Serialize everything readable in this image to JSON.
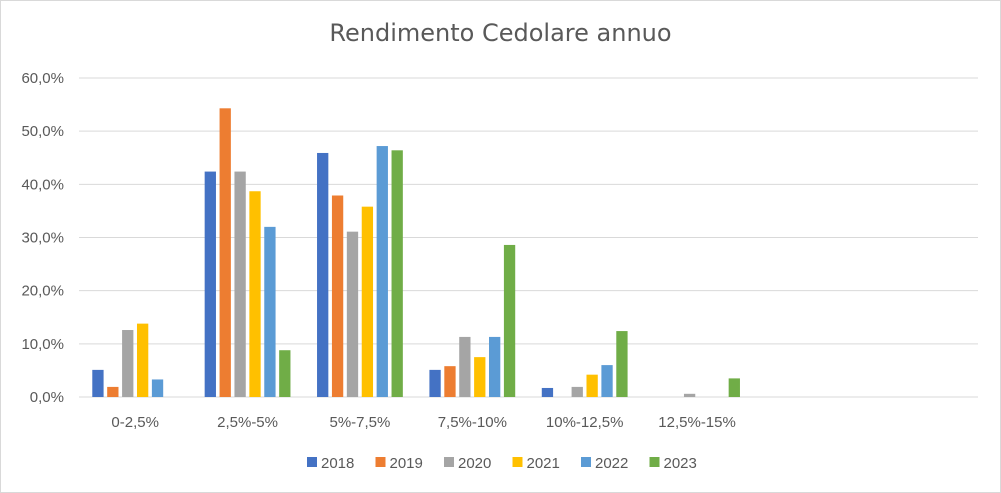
{
  "chart_data": {
    "type": "bar",
    "title": "Rendimento Cedolare annuo",
    "xlabel": "",
    "ylabel": "",
    "categories": [
      "0-2,5%",
      "2,5%-5%",
      "5%-7,5%",
      "7,5%-10%",
      "10%-12,5%",
      "12,5%-15%",
      "",
      ""
    ],
    "series": [
      {
        "name": "2018",
        "color": "#4472c4",
        "values": [
          5.1,
          42.4,
          45.9,
          5.1,
          1.7,
          0.0,
          null,
          null
        ]
      },
      {
        "name": "2019",
        "color": "#ed7d31",
        "values": [
          1.9,
          54.3,
          37.9,
          5.8,
          0.0,
          0.0,
          null,
          null
        ]
      },
      {
        "name": "2020",
        "color": "#a5a5a5",
        "values": [
          12.6,
          42.4,
          31.1,
          11.3,
          1.9,
          0.6,
          null,
          null
        ]
      },
      {
        "name": "2021",
        "color": "#ffc000",
        "values": [
          13.8,
          38.7,
          35.8,
          7.5,
          4.2,
          0.0,
          null,
          null
        ]
      },
      {
        "name": "2022",
        "color": "#5b9bd5",
        "values": [
          3.3,
          32.0,
          47.2,
          11.3,
          6.0,
          0.0,
          null,
          null
        ]
      },
      {
        "name": "2023",
        "color": "#70ad47",
        "values": [
          0.0,
          8.8,
          46.4,
          28.6,
          12.4,
          3.5,
          null,
          null
        ]
      }
    ],
    "ylim": [
      0,
      60
    ],
    "yticks": [
      "0,0%",
      "10,0%",
      "20,0%",
      "30,0%",
      "40,0%",
      "50,0%",
      "60,0%"
    ],
    "grid": true,
    "legend_position": "bottom"
  }
}
